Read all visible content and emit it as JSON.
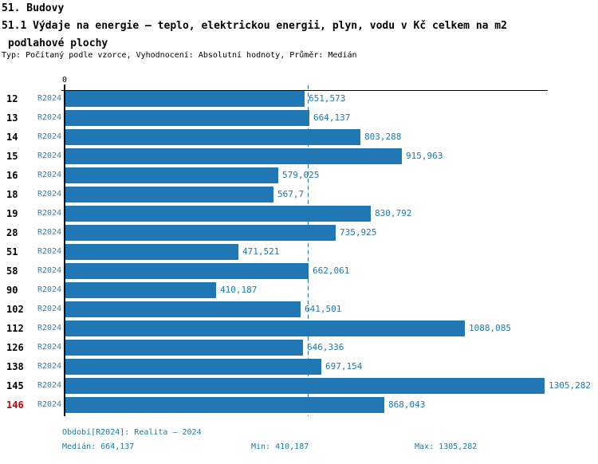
{
  "header": {
    "title_line1": "51. Budovy",
    "title_line2": "51.1 Výdaje na energie – teplo, elektrickou energii, plyn, vodu v Kč celkem na m2",
    "title_line3": "podlahové plochy",
    "subtitle": "Typ: Počítaný podle vzorce, Vyhodnocení: Absolutní hodnoty, Průměr: Medián"
  },
  "chart_data": {
    "type": "bar",
    "orientation": "horizontal",
    "title": "51.1 Výdaje na energie – teplo, elektrickou energii, plyn, vodu v Kč celkem na m2 podlahové plochy",
    "categories": [
      "12",
      "13",
      "14",
      "15",
      "16",
      "18",
      "19",
      "28",
      "51",
      "58",
      "90",
      "102",
      "112",
      "126",
      "138",
      "145",
      "146"
    ],
    "series": [
      {
        "name": "R2024",
        "values": [
          651.573,
          664.137,
          803.288,
          915.963,
          579.025,
          567.7,
          830.792,
          735.925,
          471.521,
          662.061,
          410.187,
          641.501,
          1088.085,
          646.336,
          697.154,
          1305.282,
          868.043
        ]
      }
    ],
    "value_labels": [
      "651,573",
      "664,137",
      "803,288",
      "915,963",
      "579,025",
      "567,7",
      "830,792",
      "735,925",
      "471,521",
      "662,061",
      "410,187",
      "641,501",
      "1088,085",
      "646,336",
      "697,154",
      "1305,282",
      "868,043"
    ],
    "highlighted_category": "146",
    "axis": {
      "zero_label": "0",
      "x_min": 0,
      "x_max": 1305.282,
      "grid": false
    },
    "median_line_value": 664.137,
    "legend_position": "none",
    "stats": {
      "median": 664.137,
      "min": 410.187,
      "max": 1305.282
    }
  },
  "footer": {
    "period_line": "Období[R2024]: Realita – 2024",
    "median_label": "Medián: 664,137",
    "min_label": "Min: 410,187",
    "max_label": "Max: 1305,282"
  },
  "colors": {
    "bar": "#2176b4",
    "period_text": "#2e7fc0",
    "value_text": "#1f77b4",
    "footer_text": "#1b7ba4",
    "highlight_text": "#cc0000",
    "axis": "#000000",
    "median_line": "#1f77b4"
  }
}
